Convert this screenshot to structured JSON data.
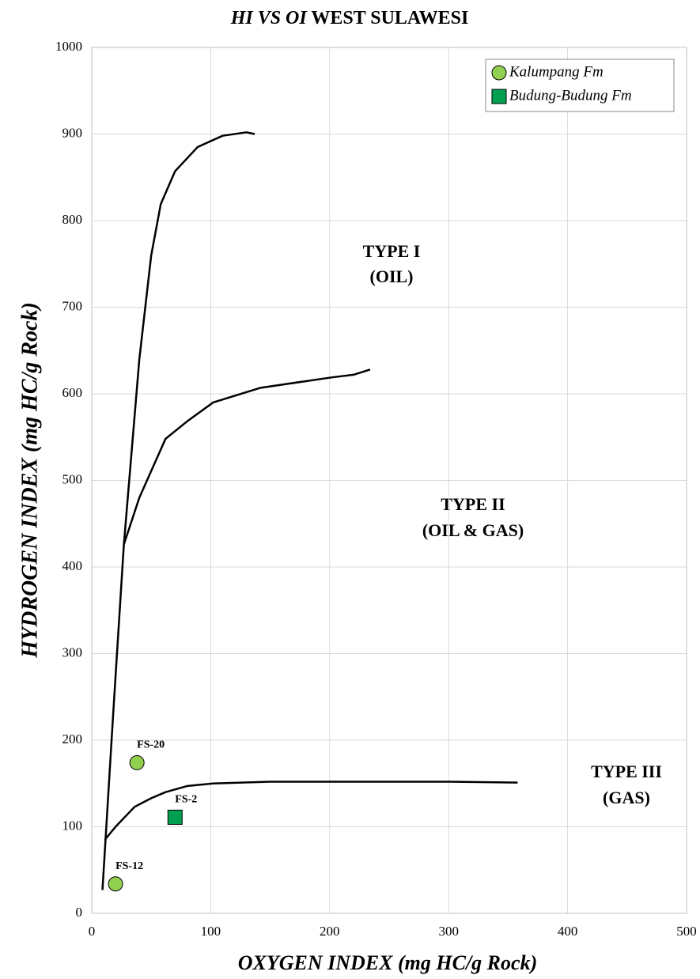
{
  "chart_data": {
    "type": "scatter",
    "title_italic": "HI VS OI",
    "title": "WEST SULAWESI",
    "x_label": "OXYGEN INDEX (mg HC/g Rock)",
    "y_label": "HYDROGEN INDEX  (mg HC/g Rock)",
    "xlim": [
      0,
      500
    ],
    "ylim": [
      0,
      1000
    ],
    "xticks": [
      0,
      100,
      200,
      300,
      400,
      500
    ],
    "yticks": [
      0,
      100,
      200,
      300,
      400,
      500,
      600,
      700,
      800,
      900,
      1000
    ],
    "grid": true,
    "legend": "top-right",
    "series": [
      {
        "name": "Kalumpang Fm",
        "color": "#92d050",
        "marker": "circle",
        "x": [
          38,
          20
        ],
        "y": [
          174,
          34
        ],
        "labels": [
          "FS-20",
          "FS-12"
        ]
      },
      {
        "name": "Budung-Budung Fm",
        "color": "#00a050",
        "marker": "square",
        "x": [
          70
        ],
        "y": [
          111
        ],
        "labels": [
          "FS-2"
        ]
      }
    ],
    "curves": [
      {
        "color": "#000000",
        "x": [
          9,
          18,
          27,
          40,
          50,
          58,
          70,
          89,
          110,
          130,
          137
        ],
        "y": [
          27,
          230,
          426,
          640,
          760,
          819,
          857,
          885,
          898,
          902,
          900
        ]
      },
      {
        "color": "#000000",
        "x": [
          27,
          40,
          62,
          80,
          102,
          142,
          202,
          220,
          234
        ],
        "y": [
          426,
          480,
          548,
          568,
          590,
          607,
          619,
          622,
          628
        ]
      },
      {
        "color": "#000000",
        "x": [
          11,
          20,
          36,
          50,
          62,
          80,
          102,
          150,
          189,
          300,
          358
        ],
        "y": [
          85,
          100,
          123,
          133,
          140,
          147,
          150,
          152,
          152,
          152,
          151
        ]
      }
    ],
    "annotations": [
      "TYPE I",
      "(OIL)",
      "TYPE II",
      "(OIL & GAS)",
      "TYPE III",
      "(GAS)"
    ]
  }
}
